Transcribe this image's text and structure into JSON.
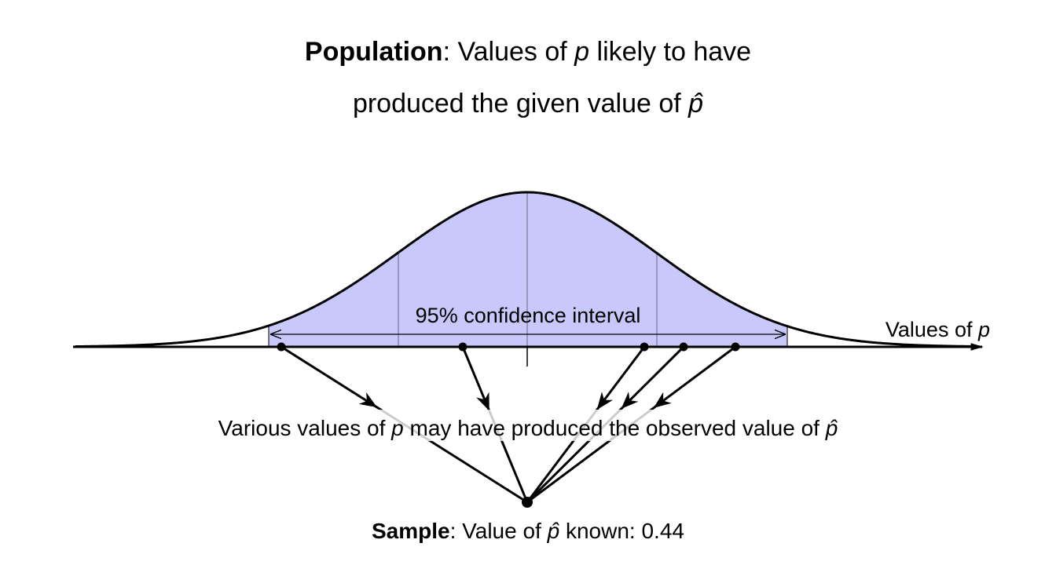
{
  "title": {
    "line1": [
      "Population",
      ": Values of ",
      "p",
      " likely to have"
    ],
    "line2": [
      "produced the given value of ",
      "p̂"
    ]
  },
  "ci_label": "95% confidence interval",
  "axis_label": [
    "Values of ",
    "p"
  ],
  "caption": [
    "Various values of ",
    "p",
    " may have produced the observed value of ",
    "p̂"
  ],
  "sample": [
    "Sample",
    ": Value of ",
    "p̂",
    " known: 0.44"
  ]
}
